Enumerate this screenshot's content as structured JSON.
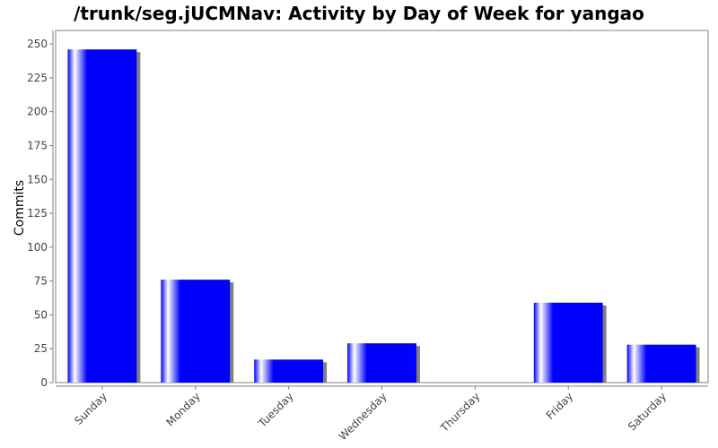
{
  "chart_data": {
    "type": "bar",
    "title": "/trunk/seg.jUCMNav: Activity by Day of Week for yangao",
    "xlabel": "",
    "ylabel": "Commits",
    "categories": [
      "Sunday",
      "Monday",
      "Tuesday",
      "Wednesday",
      "Thursday",
      "Friday",
      "Saturday"
    ],
    "values": [
      246,
      76,
      17,
      29,
      0,
      59,
      28
    ],
    "ylim": [
      0,
      260
    ],
    "yticks": [
      0,
      25,
      50,
      75,
      100,
      125,
      150,
      175,
      200,
      225,
      250
    ],
    "grid": false,
    "legend": "none",
    "colors": {
      "bar": "#0000ff",
      "bar_highlight": "#ffffff",
      "shadow": "#808080",
      "axis": "#808080",
      "plot_border": "#808080"
    }
  }
}
